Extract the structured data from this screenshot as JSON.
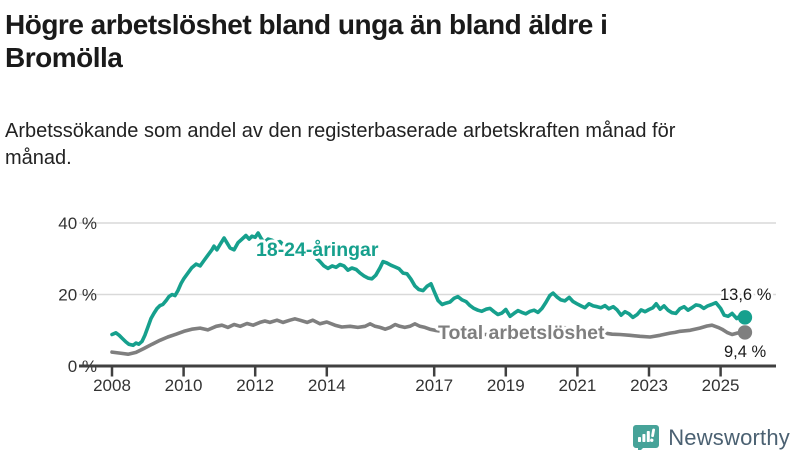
{
  "header": {
    "title": "Högre arbetslöshet bland unga än bland äldre i Bromölla",
    "subtitle": "Arbetssökande som andel av den registerbaserade arbetskraften månad för månad."
  },
  "footer": {
    "brand": "Newsworthy",
    "logo_icon": "newsworthy-speech-bubble-bar-chart-icon",
    "icon_color": "#47a399",
    "brand_text_color": "#4b6172"
  },
  "colors": {
    "young_series": "#16a08d",
    "total_series": "#7f7f7f",
    "gridline": "#d9d9d9",
    "axis": "#404040",
    "tick_label": "#333333",
    "value_label": "#1a1a1a",
    "background": "#ffffff"
  },
  "chart_data": {
    "type": "line",
    "title": "Högre arbetslöshet bland unga än bland äldre i Bromölla",
    "subtitle": "Arbetssökande som andel av den registerbaserade arbetskraften månad för månad.",
    "xlabel": "",
    "ylabel": "",
    "grid": "horizontal",
    "legend_position": "inline-labels",
    "ylim": [
      0,
      42
    ],
    "xlim": [
      2007.1,
      2026.5
    ],
    "y_ticks": [
      0,
      20,
      40
    ],
    "y_tick_labels": [
      "0 %",
      "20 %",
      "40 %"
    ],
    "x_ticks": [
      2008,
      2010,
      2012,
      2014,
      2017,
      2019,
      2021,
      2023,
      2025
    ],
    "x_tick_labels": [
      "2008",
      "2010",
      "2012",
      "2014",
      "2017",
      "2019",
      "2021",
      "2023",
      "2025"
    ],
    "series": [
      {
        "name": "18-24-åringar",
        "color": "#16a08d",
        "end_value": 13.6,
        "end_label": "13,6 %",
        "points": [
          [
            2008.0,
            8.8
          ],
          [
            2008.11,
            9.3
          ],
          [
            2008.2,
            8.6
          ],
          [
            2008.28,
            7.8
          ],
          [
            2008.39,
            6.7
          ],
          [
            2008.47,
            6.1
          ],
          [
            2008.59,
            5.8
          ],
          [
            2008.67,
            6.4
          ],
          [
            2008.75,
            6.1
          ],
          [
            2008.84,
            6.9
          ],
          [
            2008.92,
            8.6
          ],
          [
            2009.01,
            11.1
          ],
          [
            2009.09,
            13.3
          ],
          [
            2009.17,
            14.7
          ],
          [
            2009.26,
            16.1
          ],
          [
            2009.34,
            16.9
          ],
          [
            2009.42,
            17.2
          ],
          [
            2009.51,
            18.3
          ],
          [
            2009.59,
            19.4
          ],
          [
            2009.68,
            20.0
          ],
          [
            2009.76,
            19.7
          ],
          [
            2009.84,
            21.1
          ],
          [
            2009.93,
            23.1
          ],
          [
            2010.01,
            24.5
          ],
          [
            2010.12,
            26.0
          ],
          [
            2010.23,
            27.5
          ],
          [
            2010.35,
            28.5
          ],
          [
            2010.46,
            28.0
          ],
          [
            2010.57,
            29.5
          ],
          [
            2010.68,
            31.0
          ],
          [
            2010.79,
            32.5
          ],
          [
            2010.85,
            33.5
          ],
          [
            2010.93,
            32.5
          ],
          [
            2011.02,
            34.0
          ],
          [
            2011.13,
            35.8
          ],
          [
            2011.21,
            34.5
          ],
          [
            2011.3,
            33.0
          ],
          [
            2011.41,
            32.5
          ],
          [
            2011.52,
            34.5
          ],
          [
            2011.63,
            35.5
          ],
          [
            2011.74,
            36.5
          ],
          [
            2011.83,
            35.5
          ],
          [
            2011.91,
            36.3
          ],
          [
            2012.0,
            36.0
          ],
          [
            2012.08,
            37.2
          ],
          [
            2012.16,
            35.8
          ],
          [
            2012.25,
            34.5
          ],
          [
            2012.36,
            35.5
          ],
          [
            2012.47,
            35.2
          ],
          [
            2012.58,
            34.4
          ],
          [
            2012.69,
            34.8
          ],
          [
            2012.8,
            33.8
          ],
          [
            2012.92,
            34.5
          ],
          [
            2013.03,
            34.2
          ],
          [
            2013.14,
            33.4
          ],
          [
            2013.25,
            33.8
          ],
          [
            2013.36,
            33.0
          ],
          [
            2013.47,
            32.4
          ],
          [
            2013.58,
            31.5
          ],
          [
            2013.7,
            30.3
          ],
          [
            2013.81,
            29.2
          ],
          [
            2013.92,
            28.0
          ],
          [
            2014.03,
            27.3
          ],
          [
            2014.15,
            28.0
          ],
          [
            2014.26,
            27.6
          ],
          [
            2014.37,
            28.4
          ],
          [
            2014.48,
            28.0
          ],
          [
            2014.59,
            26.8
          ],
          [
            2014.7,
            27.4
          ],
          [
            2014.82,
            27.0
          ],
          [
            2014.93,
            26.0
          ],
          [
            2015.04,
            25.2
          ],
          [
            2015.15,
            24.6
          ],
          [
            2015.26,
            24.4
          ],
          [
            2015.37,
            25.4
          ],
          [
            2015.49,
            27.5
          ],
          [
            2015.57,
            29.2
          ],
          [
            2015.68,
            28.8
          ],
          [
            2015.79,
            28.2
          ],
          [
            2015.91,
            27.7
          ],
          [
            2016.02,
            27.2
          ],
          [
            2016.13,
            26.0
          ],
          [
            2016.24,
            25.8
          ],
          [
            2016.35,
            24.3
          ],
          [
            2016.46,
            22.4
          ],
          [
            2016.57,
            21.4
          ],
          [
            2016.69,
            21.1
          ],
          [
            2016.8,
            22.3
          ],
          [
            2016.91,
            23.0
          ],
          [
            2017.0,
            20.8
          ],
          [
            2017.11,
            18.3
          ],
          [
            2017.22,
            17.2
          ],
          [
            2017.33,
            17.6
          ],
          [
            2017.44,
            17.9
          ],
          [
            2017.55,
            18.9
          ],
          [
            2017.66,
            19.4
          ],
          [
            2017.78,
            18.5
          ],
          [
            2017.89,
            18.0
          ],
          [
            2018.0,
            16.9
          ],
          [
            2018.11,
            16.1
          ],
          [
            2018.22,
            15.6
          ],
          [
            2018.33,
            15.3
          ],
          [
            2018.45,
            15.9
          ],
          [
            2018.56,
            16.1
          ],
          [
            2018.67,
            15.2
          ],
          [
            2018.78,
            14.4
          ],
          [
            2018.89,
            14.8
          ],
          [
            2019.0,
            15.8
          ],
          [
            2019.12,
            13.9
          ],
          [
            2019.23,
            14.7
          ],
          [
            2019.34,
            15.5
          ],
          [
            2019.45,
            15.0
          ],
          [
            2019.56,
            14.6
          ],
          [
            2019.68,
            15.3
          ],
          [
            2019.79,
            15.6
          ],
          [
            2019.9,
            15.0
          ],
          [
            2020.01,
            16.1
          ],
          [
            2020.12,
            17.8
          ],
          [
            2020.23,
            19.7
          ],
          [
            2020.32,
            20.4
          ],
          [
            2020.43,
            19.3
          ],
          [
            2020.54,
            18.5
          ],
          [
            2020.65,
            18.2
          ],
          [
            2020.77,
            19.2
          ],
          [
            2020.88,
            18.0
          ],
          [
            2020.99,
            17.4
          ],
          [
            2021.1,
            16.8
          ],
          [
            2021.21,
            16.3
          ],
          [
            2021.32,
            17.4
          ],
          [
            2021.44,
            16.8
          ],
          [
            2021.55,
            16.6
          ],
          [
            2021.66,
            16.3
          ],
          [
            2021.77,
            16.9
          ],
          [
            2021.88,
            16.0
          ],
          [
            2022.0,
            16.6
          ],
          [
            2022.11,
            15.7
          ],
          [
            2022.22,
            14.2
          ],
          [
            2022.33,
            15.2
          ],
          [
            2022.44,
            14.6
          ],
          [
            2022.55,
            13.6
          ],
          [
            2022.67,
            14.4
          ],
          [
            2022.78,
            15.7
          ],
          [
            2022.89,
            15.2
          ],
          [
            2023.0,
            15.8
          ],
          [
            2023.11,
            16.3
          ],
          [
            2023.2,
            17.4
          ],
          [
            2023.31,
            15.9
          ],
          [
            2023.42,
            16.8
          ],
          [
            2023.53,
            15.6
          ],
          [
            2023.64,
            14.9
          ],
          [
            2023.75,
            14.7
          ],
          [
            2023.86,
            16.0
          ],
          [
            2023.98,
            16.6
          ],
          [
            2024.09,
            15.6
          ],
          [
            2024.2,
            16.3
          ],
          [
            2024.31,
            17.1
          ],
          [
            2024.42,
            16.9
          ],
          [
            2024.53,
            16.1
          ],
          [
            2024.64,
            16.8
          ],
          [
            2024.75,
            17.2
          ],
          [
            2024.87,
            17.7
          ],
          [
            2025.0,
            16.1
          ],
          [
            2025.1,
            14.2
          ],
          [
            2025.21,
            13.9
          ],
          [
            2025.32,
            14.7
          ],
          [
            2025.45,
            13.3
          ],
          [
            2025.56,
            14.1
          ],
          [
            2025.68,
            13.6
          ]
        ]
      },
      {
        "name": "Total arbetslöshet",
        "color": "#7f7f7f",
        "end_value": 9.4,
        "end_label": "9,4 %",
        "points": [
          [
            2008.0,
            3.9
          ],
          [
            2008.22,
            3.6
          ],
          [
            2008.45,
            3.3
          ],
          [
            2008.67,
            3.8
          ],
          [
            2008.89,
            4.9
          ],
          [
            2009.12,
            6.1
          ],
          [
            2009.34,
            7.2
          ],
          [
            2009.56,
            8.1
          ],
          [
            2009.79,
            8.9
          ],
          [
            2010.01,
            9.7
          ],
          [
            2010.23,
            10.3
          ],
          [
            2010.46,
            10.6
          ],
          [
            2010.68,
            10.1
          ],
          [
            2010.91,
            11.1
          ],
          [
            2011.07,
            11.4
          ],
          [
            2011.24,
            10.8
          ],
          [
            2011.41,
            11.6
          ],
          [
            2011.58,
            11.1
          ],
          [
            2011.77,
            11.9
          ],
          [
            2011.94,
            11.4
          ],
          [
            2012.13,
            12.2
          ],
          [
            2012.27,
            12.6
          ],
          [
            2012.41,
            12.2
          ],
          [
            2012.61,
            12.8
          ],
          [
            2012.78,
            12.2
          ],
          [
            2012.97,
            12.8
          ],
          [
            2013.11,
            13.2
          ],
          [
            2013.25,
            12.8
          ],
          [
            2013.45,
            12.2
          ],
          [
            2013.61,
            12.8
          ],
          [
            2013.81,
            11.8
          ],
          [
            2014.0,
            12.3
          ],
          [
            2014.23,
            11.4
          ],
          [
            2014.42,
            10.9
          ],
          [
            2014.65,
            11.1
          ],
          [
            2014.87,
            10.8
          ],
          [
            2015.07,
            11.1
          ],
          [
            2015.21,
            11.8
          ],
          [
            2015.35,
            11.1
          ],
          [
            2015.49,
            10.8
          ],
          [
            2015.63,
            10.3
          ],
          [
            2015.77,
            10.8
          ],
          [
            2015.91,
            11.6
          ],
          [
            2016.04,
            11.1
          ],
          [
            2016.18,
            10.8
          ],
          [
            2016.32,
            11.1
          ],
          [
            2016.46,
            11.8
          ],
          [
            2016.6,
            11.1
          ],
          [
            2016.74,
            10.8
          ],
          [
            2016.88,
            10.3
          ],
          [
            2017.02,
            10.0
          ],
          [
            2017.22,
            9.7
          ],
          [
            2017.44,
            9.4
          ],
          [
            2017.72,
            9.2
          ],
          [
            2018.0,
            9.0
          ],
          [
            2018.28,
            8.8
          ],
          [
            2018.56,
            8.8
          ],
          [
            2018.84,
            8.6
          ],
          [
            2019.0,
            8.6
          ],
          [
            2019.26,
            8.4
          ],
          [
            2019.54,
            8.3
          ],
          [
            2019.81,
            8.4
          ],
          [
            2020.01,
            8.9
          ],
          [
            2020.18,
            10.0
          ],
          [
            2020.32,
            11.1
          ],
          [
            2020.51,
            10.8
          ],
          [
            2020.79,
            10.6
          ],
          [
            2021.02,
            10.3
          ],
          [
            2021.35,
            9.7
          ],
          [
            2021.63,
            9.4
          ],
          [
            2021.97,
            8.9
          ],
          [
            2022.19,
            8.8
          ],
          [
            2022.47,
            8.6
          ],
          [
            2022.75,
            8.3
          ],
          [
            2023.03,
            8.1
          ],
          [
            2023.31,
            8.6
          ],
          [
            2023.59,
            9.2
          ],
          [
            2023.73,
            9.4
          ],
          [
            2023.87,
            9.7
          ],
          [
            2024.15,
            10.0
          ],
          [
            2024.42,
            10.6
          ],
          [
            2024.62,
            11.2
          ],
          [
            2024.76,
            11.4
          ],
          [
            2024.93,
            10.8
          ],
          [
            2025.04,
            10.3
          ],
          [
            2025.18,
            9.4
          ],
          [
            2025.32,
            8.8
          ],
          [
            2025.46,
            9.2
          ],
          [
            2025.68,
            9.4
          ]
        ]
      }
    ]
  }
}
